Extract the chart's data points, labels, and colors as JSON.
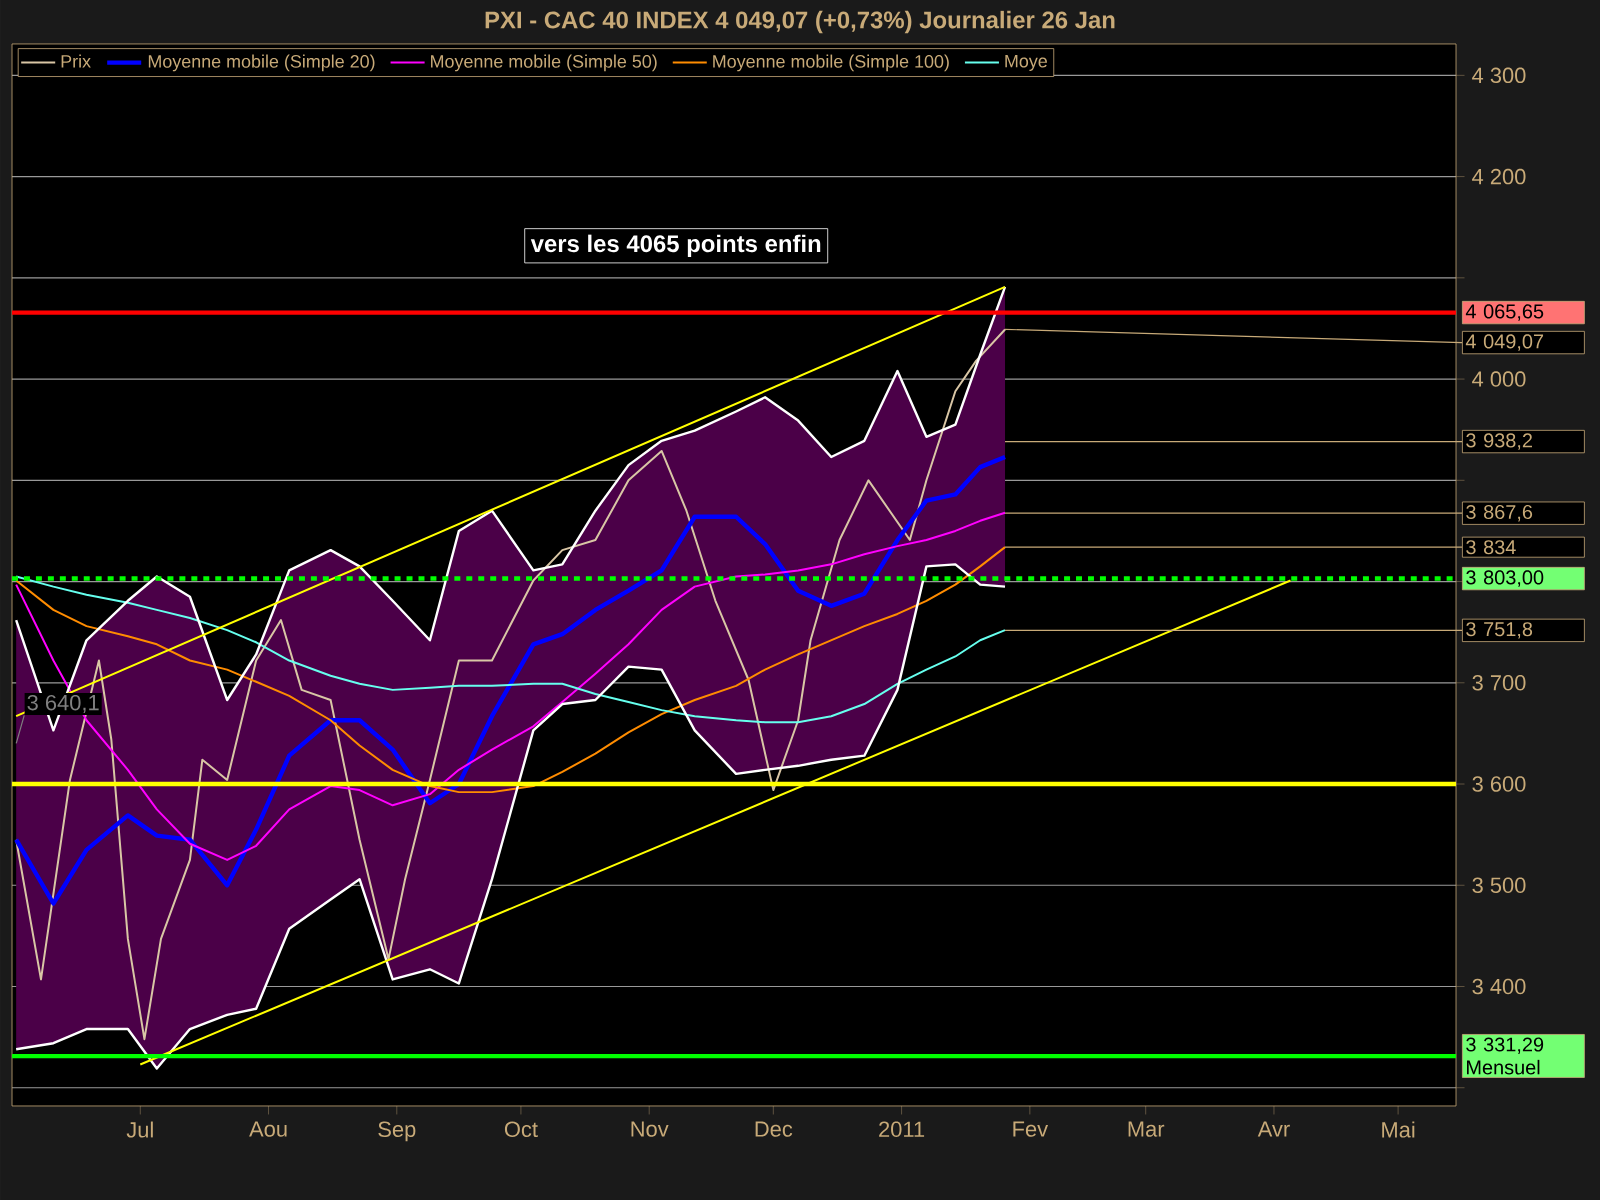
{
  "chart_data": {
    "type": "line",
    "title": "PXI - CAC 40 INDEX    4 049,07 (+0,73%)    Journalier  26 Jan",
    "x": [
      "2010-06-01",
      "2010-06-10",
      "2010-06-18",
      "2010-06-28",
      "2010-07-05",
      "2010-07-13",
      "2010-07-22",
      "2010-07-29",
      "2010-08-06",
      "2010-08-16",
      "2010-08-23",
      "2010-08-31",
      "2010-09-09",
      "2010-09-16",
      "2010-09-24",
      "2010-10-04",
      "2010-10-11",
      "2010-10-19",
      "2010-10-27",
      "2010-11-04",
      "2010-11-12",
      "2010-11-22",
      "2010-11-29",
      "2010-12-07",
      "2010-12-15",
      "2010-12-23",
      "2010-12-31",
      "2011-01-07",
      "2011-01-14",
      "2011-01-20",
      "2011-01-26"
    ],
    "series": [
      {
        "name": "Prix",
        "color": "#d9c6a5",
        "x": [
          "2010-06-01",
          "2010-06-07",
          "2010-06-14",
          "2010-06-21",
          "2010-06-24",
          "2010-06-28",
          "2010-07-02",
          "2010-07-06",
          "2010-07-13",
          "2010-07-16",
          "2010-07-22",
          "2010-07-29",
          "2010-08-04",
          "2010-08-09",
          "2010-08-16",
          "2010-08-23",
          "2010-08-30",
          "2010-09-03",
          "2010-09-09",
          "2010-09-16",
          "2010-09-24",
          "2010-10-04",
          "2010-10-11",
          "2010-10-19",
          "2010-10-27",
          "2010-11-04",
          "2010-11-10",
          "2010-11-17",
          "2010-11-25",
          "2010-12-01",
          "2010-12-07",
          "2010-12-10",
          "2010-12-17",
          "2010-12-24",
          "2011-01-03",
          "2011-01-07",
          "2011-01-14",
          "2011-01-19",
          "2011-01-26"
        ],
        "values": [
          3545,
          3407,
          3604,
          3722,
          3644,
          3447,
          3348,
          3447,
          3525,
          3624,
          3604,
          3722,
          3762,
          3693,
          3683,
          3545,
          3427,
          3506,
          3604,
          3722,
          3722,
          3801,
          3831,
          3841,
          3900,
          3929,
          3870,
          3781,
          3703,
          3594,
          3663,
          3742,
          3841,
          3900,
          3841,
          3900,
          3988,
          4018,
          4049
        ]
      },
      {
        "name": "Moyenne mobile (Simple 20)",
        "color": "#0000ff",
        "values": [
          3545,
          3482,
          3535,
          3569,
          3549,
          3545,
          3500,
          3555,
          3628,
          3663,
          3663,
          3634,
          3581,
          3600,
          3667,
          3738,
          3748,
          3772,
          3791,
          3811,
          3864,
          3864,
          3837,
          3791,
          3776,
          3788,
          3841,
          3880,
          3886,
          3913,
          3923
        ],
        "upper": [
          3762,
          3653,
          3742,
          3781,
          3805,
          3785,
          3683,
          3728,
          3811,
          3831,
          3815,
          3781,
          3742,
          3850,
          3870,
          3811,
          3817,
          3870,
          3915,
          3939,
          3949,
          3968,
          3982,
          3959,
          3923,
          3939,
          4008,
          3943,
          3955,
          4024,
          4091
        ],
        "lower": [
          3338,
          3344,
          3358,
          3358,
          3319,
          3358,
          3372,
          3378,
          3457,
          3486,
          3506,
          3407,
          3417,
          3403,
          3506,
          3653,
          3679,
          3683,
          3716,
          3713,
          3653,
          3610,
          3614,
          3618,
          3624,
          3628,
          3693,
          3815,
          3817,
          3797,
          3795
        ]
      },
      {
        "name": "Moyenne mobile (Simple 50)",
        "color": "#ff00ff",
        "values": [
          3797,
          3722,
          3663,
          3614,
          3575,
          3541,
          3525,
          3539,
          3575,
          3598,
          3594,
          3579,
          3590,
          3614,
          3634,
          3657,
          3681,
          3709,
          3738,
          3772,
          3795,
          3805,
          3807,
          3811,
          3817,
          3827,
          3835,
          3841,
          3850,
          3860,
          3868
        ]
      },
      {
        "name": "Moyenne mobile (Simple 100)",
        "color": "#ff8c00",
        "values": [
          3801,
          3772,
          3756,
          3746,
          3738,
          3722,
          3713,
          3701,
          3687,
          3663,
          3638,
          3614,
          3598,
          3592,
          3592,
          3598,
          3612,
          3630,
          3651,
          3669,
          3683,
          3697,
          3713,
          3728,
          3742,
          3756,
          3768,
          3781,
          3797,
          3815,
          3834
        ]
      },
      {
        "name": "Moye",
        "color": "#66ffee",
        "values": [
          3805,
          3795,
          3787,
          3779,
          3772,
          3764,
          3752,
          3740,
          3722,
          3707,
          3699,
          3693,
          3695,
          3697,
          3697,
          3699,
          3699,
          3689,
          3681,
          3673,
          3667,
          3663,
          3661,
          3661,
          3667,
          3679,
          3699,
          3713,
          3726,
          3742,
          3752
        ]
      },
      {
        "color": "#ffffff",
        "values": [
          3762,
          3653,
          3742,
          3781,
          3805,
          3785,
          3683,
          3728,
          3811,
          3831,
          3815,
          3781,
          3742,
          3850,
          3870,
          3811,
          3817,
          3870,
          3915,
          3939,
          3949,
          3968,
          3982,
          3959,
          3923,
          3939,
          4008,
          3943,
          3955,
          4024,
          4091
        ]
      },
      {
        "color": "#ffffff",
        "values": [
          3338,
          3344,
          3358,
          3358,
          3319,
          3358,
          3372,
          3378,
          3457,
          3486,
          3506,
          3407,
          3417,
          3403,
          3506,
          3653,
          3679,
          3683,
          3716,
          3713,
          3653,
          3610,
          3614,
          3618,
          3624,
          3628,
          3693,
          3815,
          3817,
          3797,
          3795
        ]
      },
      {
        "color": "#ffff00",
        "x": [
          "2010-06-01",
          "2011-01-26"
        ],
        "values": [
          3667,
          4091
        ]
      },
      {
        "color": "#ffff00",
        "x": [
          "2010-07-01",
          "2011-04-05"
        ],
        "values": [
          3323,
          3801
        ]
      }
    ],
    "xlim": [
      "2010-05-31",
      "2011-05-15"
    ],
    "ylim": [
      3282,
      4331
    ],
    "xticks": [
      {
        "value": "2010-07-01",
        "label": "Jul"
      },
      {
        "value": "2010-08-01",
        "label": "Aou"
      },
      {
        "value": "2010-09-01",
        "label": "Sep"
      },
      {
        "value": "2010-10-01",
        "label": "Oct"
      },
      {
        "value": "2010-11-01",
        "label": "Nov"
      },
      {
        "value": "2010-12-01",
        "label": "Dec"
      },
      {
        "value": "2011-01-01",
        "label": "2011"
      },
      {
        "value": "2011-02-01",
        "label": "Fev"
      },
      {
        "value": "2011-03-01",
        "label": "Mar"
      },
      {
        "value": "2011-04-01",
        "label": "Avr"
      },
      {
        "value": "2011-05-01",
        "label": "Mai"
      }
    ],
    "yticks": [
      {
        "value": 3300,
        "label": null
      },
      {
        "value": 3400,
        "label": "3 400"
      },
      {
        "value": 3500,
        "label": "3 500"
      },
      {
        "value": 3600,
        "label": "3 600"
      },
      {
        "value": 3700,
        "label": "3 700"
      },
      {
        "value": 3800,
        "label": null
      },
      {
        "value": 3900,
        "label": null
      },
      {
        "value": 4000,
        "label": "4 000"
      },
      {
        "value": 4100,
        "label": null
      },
      {
        "value": 4200,
        "label": "4 200"
      },
      {
        "value": 4300,
        "label": "4 300"
      }
    ],
    "ref_lines": [
      {
        "axis": "y",
        "value": 4065.65,
        "label": "4 065,65",
        "color": "#ff0000"
      },
      {
        "axis": "y",
        "value": 3803,
        "label": "3 803,00",
        "color": "#00ff00",
        "line_style": "dashed"
      },
      {
        "axis": "y",
        "value": 3331.29,
        "label": "3 331,29 Mensuel",
        "color": "#00ff00"
      },
      {
        "axis": "y",
        "value": 3600,
        "color": "#ffff00"
      }
    ],
    "annotations": [
      "vers les 4065 points enfin",
      {
        "text": "4 049,07",
        "x": "2011-01-26",
        "y": 4049.07
      },
      {
        "text": "3 938,2",
        "x": "2011-01-26",
        "y": 3938.2
      },
      {
        "text": "3 867,6",
        "x": "2011-01-26",
        "y": 3867.6
      },
      {
        "text": "3 834",
        "x": "2011-01-26",
        "y": 3834
      },
      {
        "text": "3 751,8",
        "x": "2011-01-26",
        "y": 3751.8
      },
      {
        "text": "3 640,1",
        "x": "2010-06-01",
        "y": 3640.1
      }
    ],
    "grid": "y",
    "legend": "top left"
  }
}
